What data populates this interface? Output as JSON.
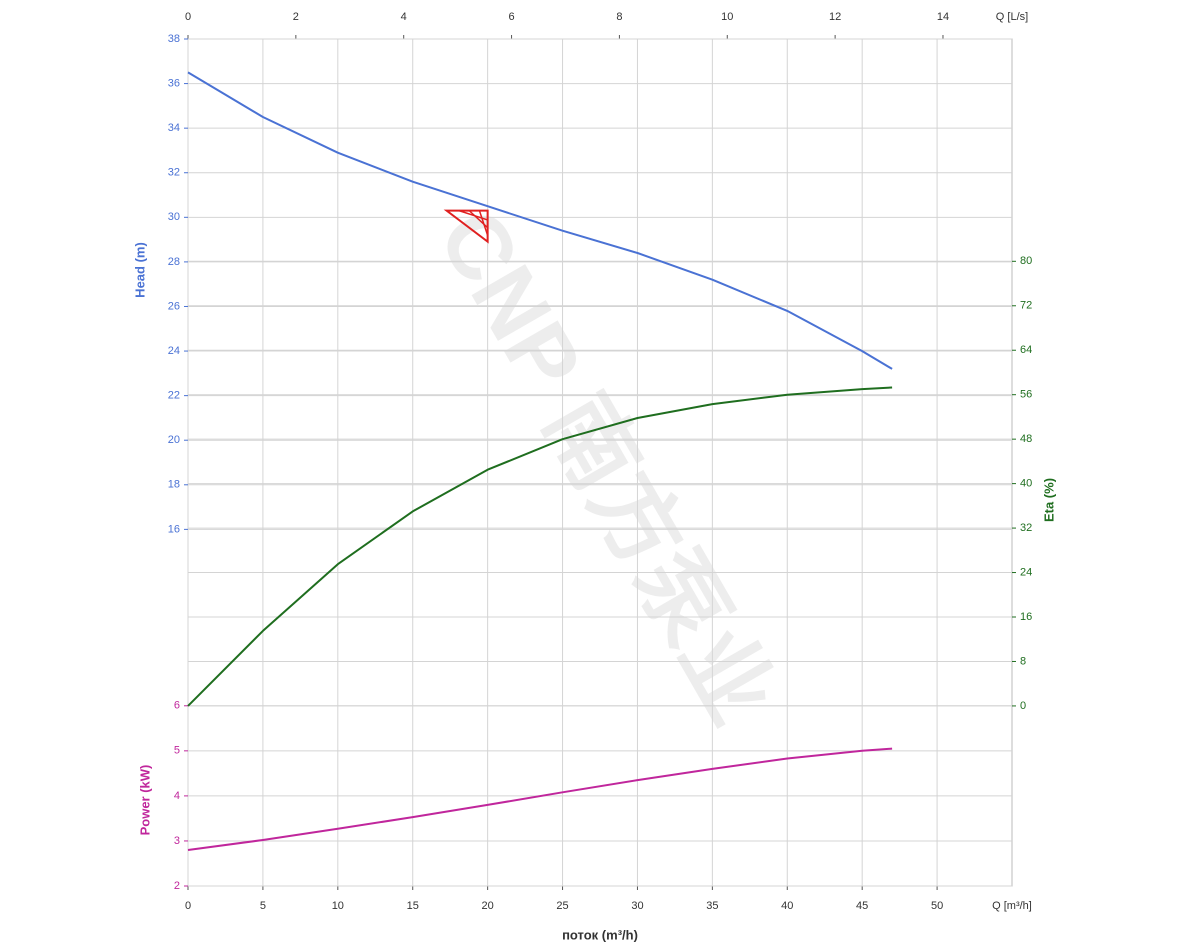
{
  "chart_data": {
    "type": "line",
    "watermark": "CNP 南方泵业",
    "xlabel": "поток (m³/h)",
    "xunit": "Q [m³/h]",
    "xlim": [
      0,
      55
    ],
    "xticks": [
      0,
      5,
      10,
      15,
      20,
      25,
      30,
      35,
      40,
      45,
      50
    ],
    "x2label": "Q [L/s]",
    "x2lim": [
      0,
      15.28
    ],
    "x2ticks": [
      0,
      2,
      4,
      6,
      8,
      10,
      12,
      14
    ],
    "ylabel": "Head (m)",
    "ylim": [
      0,
      38
    ],
    "yticks": [
      16,
      18,
      20,
      22,
      24,
      26,
      28,
      30,
      32,
      34,
      36,
      38
    ],
    "y2label": "Eta (%)",
    "y2lim": [
      -32.4,
      120
    ],
    "y2ticks": [
      0,
      8,
      16,
      24,
      32,
      40,
      48,
      56,
      64,
      72,
      80
    ],
    "y3label": "Power (kW)",
    "y3lim": [
      2,
      20.8
    ],
    "y3ticks": [
      2,
      3,
      4,
      5,
      6
    ],
    "grid": true,
    "x": [
      0,
      5,
      10,
      15,
      20,
      25,
      30,
      35,
      40,
      45,
      47
    ],
    "series": [
      {
        "axis": "y",
        "color": "#4a72d4",
        "values": [
          36.5,
          34.5,
          32.9,
          31.6,
          30.5,
          29.4,
          28.4,
          27.2,
          25.8,
          24.0,
          23.2
        ]
      },
      {
        "axis": "y2",
        "color": "#1f6e1f",
        "values": [
          0,
          13.5,
          25.5,
          35,
          42.5,
          48,
          51.8,
          54.3,
          56,
          57,
          57.3
        ]
      },
      {
        "axis": "y3",
        "color": "#c0269c",
        "values": [
          2.8,
          3.02,
          3.27,
          3.53,
          3.8,
          4.08,
          4.35,
          4.6,
          4.83,
          5.0,
          5.05
        ]
      }
    ],
    "duty_point": {
      "x": 20,
      "y": 30.3,
      "color": "#e02020"
    }
  }
}
